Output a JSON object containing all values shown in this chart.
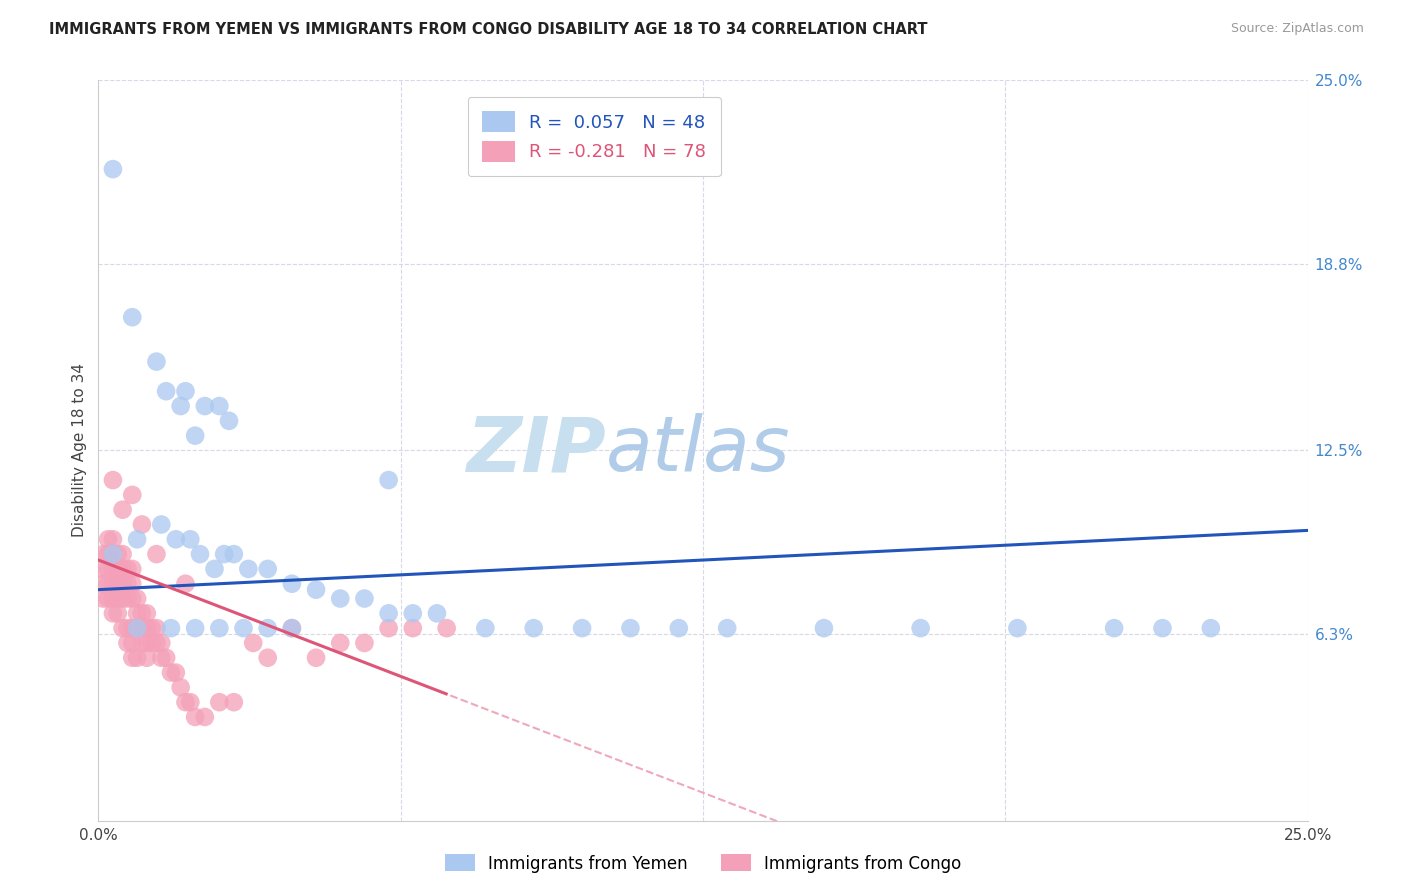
{
  "title": "IMMIGRANTS FROM YEMEN VS IMMIGRANTS FROM CONGO DISABILITY AGE 18 TO 34 CORRELATION CHART",
  "source": "Source: ZipAtlas.com",
  "ylabel": "Disability Age 18 to 34",
  "right_yticklabels": [
    "6.3%",
    "12.5%",
    "18.8%",
    "25.0%"
  ],
  "right_ytick_vals": [
    0.063,
    0.125,
    0.188,
    0.25
  ],
  "xlim": [
    0.0,
    0.25
  ],
  "ylim": [
    0.0,
    0.25
  ],
  "legend_label_yemen": "Immigrants from Yemen",
  "legend_label_congo": "Immigrants from Congo",
  "color_yemen": "#aac8f0",
  "color_congo": "#f4a0b8",
  "color_trendline_yemen": "#2255bb",
  "color_trendline_congo": "#dd5577",
  "watermark_color": "#cce4f4",
  "grid_color": "#d8d8e8",
  "R_yemen": 0.057,
  "N_yemen": 48,
  "R_congo": -0.281,
  "N_congo": 78,
  "yemen_x": [
    0.003,
    0.007,
    0.012,
    0.014,
    0.017,
    0.018,
    0.02,
    0.022,
    0.025,
    0.027,
    0.003,
    0.008,
    0.013,
    0.016,
    0.019,
    0.021,
    0.024,
    0.026,
    0.028,
    0.031,
    0.035,
    0.04,
    0.045,
    0.05,
    0.055,
    0.06,
    0.065,
    0.07,
    0.08,
    0.09,
    0.1,
    0.11,
    0.13,
    0.15,
    0.17,
    0.19,
    0.21,
    0.23,
    0.008,
    0.015,
    0.02,
    0.025,
    0.03,
    0.035,
    0.04,
    0.06,
    0.12,
    0.22
  ],
  "yemen_y": [
    0.22,
    0.17,
    0.155,
    0.145,
    0.14,
    0.145,
    0.13,
    0.14,
    0.14,
    0.135,
    0.09,
    0.095,
    0.1,
    0.095,
    0.095,
    0.09,
    0.085,
    0.09,
    0.09,
    0.085,
    0.085,
    0.08,
    0.078,
    0.075,
    0.075,
    0.07,
    0.07,
    0.07,
    0.065,
    0.065,
    0.065,
    0.065,
    0.065,
    0.065,
    0.065,
    0.065,
    0.065,
    0.065,
    0.065,
    0.065,
    0.065,
    0.065,
    0.065,
    0.065,
    0.065,
    0.115,
    0.065,
    0.065
  ],
  "congo_x": [
    0.001,
    0.001,
    0.001,
    0.001,
    0.002,
    0.002,
    0.002,
    0.002,
    0.002,
    0.003,
    0.003,
    0.003,
    0.003,
    0.003,
    0.003,
    0.004,
    0.004,
    0.004,
    0.004,
    0.004,
    0.005,
    0.005,
    0.005,
    0.005,
    0.005,
    0.006,
    0.006,
    0.006,
    0.006,
    0.006,
    0.007,
    0.007,
    0.007,
    0.007,
    0.007,
    0.007,
    0.008,
    0.008,
    0.008,
    0.008,
    0.009,
    0.009,
    0.009,
    0.01,
    0.01,
    0.01,
    0.01,
    0.011,
    0.011,
    0.012,
    0.012,
    0.013,
    0.013,
    0.014,
    0.015,
    0.016,
    0.017,
    0.018,
    0.019,
    0.02,
    0.022,
    0.025,
    0.028,
    0.032,
    0.035,
    0.04,
    0.045,
    0.05,
    0.055,
    0.06,
    0.065,
    0.072,
    0.003,
    0.005,
    0.007,
    0.009,
    0.012,
    0.018
  ],
  "congo_y": [
    0.085,
    0.09,
    0.08,
    0.075,
    0.095,
    0.09,
    0.085,
    0.08,
    0.075,
    0.095,
    0.09,
    0.085,
    0.08,
    0.075,
    0.07,
    0.09,
    0.085,
    0.08,
    0.075,
    0.07,
    0.09,
    0.085,
    0.08,
    0.075,
    0.065,
    0.085,
    0.08,
    0.075,
    0.065,
    0.06,
    0.085,
    0.08,
    0.075,
    0.065,
    0.06,
    0.055,
    0.075,
    0.07,
    0.065,
    0.055,
    0.07,
    0.065,
    0.06,
    0.07,
    0.065,
    0.06,
    0.055,
    0.065,
    0.06,
    0.065,
    0.06,
    0.06,
    0.055,
    0.055,
    0.05,
    0.05,
    0.045,
    0.04,
    0.04,
    0.035,
    0.035,
    0.04,
    0.04,
    0.06,
    0.055,
    0.065,
    0.055,
    0.06,
    0.06,
    0.065,
    0.065,
    0.065,
    0.115,
    0.105,
    0.11,
    0.1,
    0.09,
    0.08
  ]
}
